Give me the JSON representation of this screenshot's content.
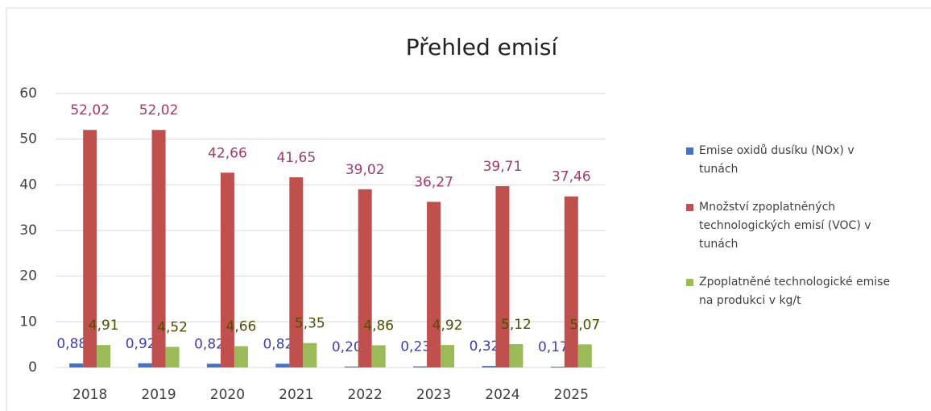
{
  "chart_data": {
    "type": "bar",
    "title": "Přehled emisí",
    "categories": [
      "2018",
      "2019",
      "2020",
      "2021",
      "2022",
      "2023",
      "2024",
      "2025"
    ],
    "series": [
      {
        "name": "Emise oxidů dusíku (NOx) v tunách",
        "color": "#4472c4",
        "label_color": "#3f3fb4",
        "values": [
          0.888,
          0.925,
          0.825,
          0.825,
          0.207,
          0.238,
          0.329,
          0.173
        ],
        "value_labels": [
          "0,888",
          "0,925",
          "0,825",
          "0,825",
          "0,207",
          "0,238",
          "0,329",
          "0,173"
        ]
      },
      {
        "name": "Množství zpoplatněných technologických emisí (VOC) v tunách",
        "color": "#c0504d",
        "label_color": "#a3396b",
        "values": [
          52.02,
          52.02,
          42.66,
          41.65,
          39.02,
          36.27,
          39.71,
          37.46
        ],
        "value_labels": [
          "52,02",
          "52,02",
          "42,66",
          "41,65",
          "39,02",
          "36,27",
          "39,71",
          "37,46"
        ]
      },
      {
        "name": "Zpoplatněné technologické emise na produkci v kg/t",
        "color": "#9bbb59",
        "label_color": "#4f4f00",
        "values": [
          4.91,
          4.52,
          4.66,
          5.35,
          4.86,
          4.92,
          5.12,
          5.07
        ],
        "value_labels": [
          "4,91",
          "4,52",
          "4,66",
          "5,35",
          "4,86",
          "4,92",
          "5,12",
          "5,07"
        ]
      }
    ],
    "ylim": [
      0,
      60
    ],
    "yticks": [
      0,
      10,
      20,
      30,
      40,
      50,
      60
    ],
    "grid": true,
    "legend": "right"
  }
}
